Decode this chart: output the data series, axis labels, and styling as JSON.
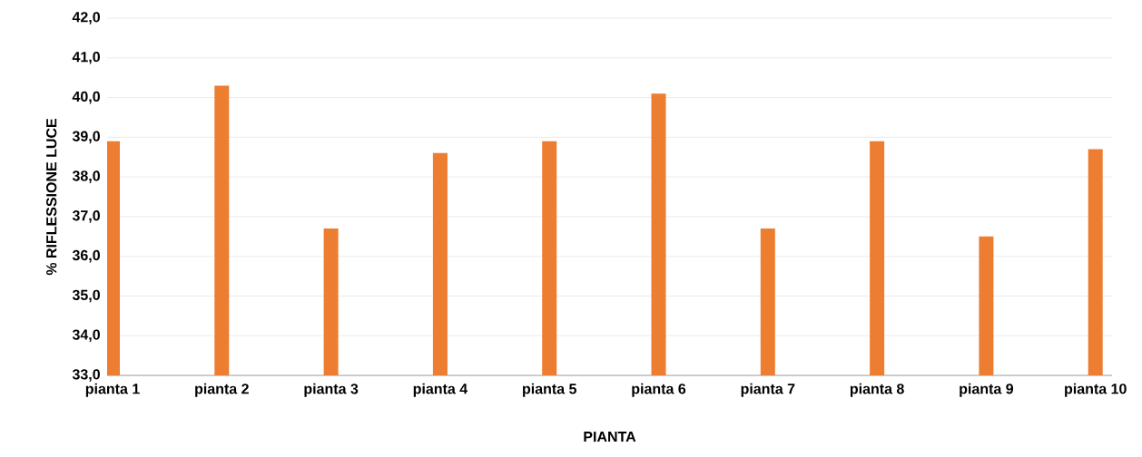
{
  "chart_data": {
    "type": "bar",
    "xlabel": "PIANTA",
    "ylabel": "% RIFLESSIONE LUCE",
    "categories": [
      "pianta 1",
      "pianta 2",
      "pianta 3",
      "pianta 4",
      "pianta 5",
      "pianta 6",
      "pianta 7",
      "pianta 8",
      "pianta 9",
      "pianta 10"
    ],
    "values": [
      38.9,
      40.3,
      36.7,
      38.6,
      38.9,
      40.1,
      36.7,
      38.9,
      36.5,
      38.7
    ],
    "color": "#ed7d31",
    "ylim": [
      33,
      42
    ],
    "yticks": [
      {
        "value": 33,
        "label": "33,0"
      },
      {
        "value": 34,
        "label": "34,0"
      },
      {
        "value": 35,
        "label": "35,0"
      },
      {
        "value": 36,
        "label": "36,0"
      },
      {
        "value": 37,
        "label": "37,0"
      },
      {
        "value": 38,
        "label": "38,0"
      },
      {
        "value": 39,
        "label": "39,0"
      },
      {
        "value": 40,
        "label": "40,0"
      },
      {
        "value": 41,
        "label": "41,0"
      },
      {
        "value": 42,
        "label": "42,0"
      }
    ],
    "grid": "y"
  }
}
